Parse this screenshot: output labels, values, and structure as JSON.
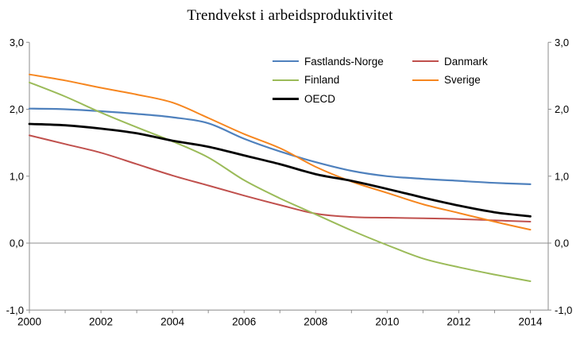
{
  "title": "Trendvekst i arbeidsproduktivitet",
  "chart_data": {
    "type": "line",
    "title": "Trendvekst i arbeidsproduktivitet",
    "x": [
      2000,
      2001,
      2002,
      2003,
      2004,
      2005,
      2006,
      2007,
      2008,
      2009,
      2010,
      2011,
      2012,
      2013,
      2014
    ],
    "x_major_ticks": [
      2000,
      2002,
      2004,
      2006,
      2008,
      2010,
      2012,
      2014
    ],
    "x_major_tick_labels": [
      "2000",
      "2002",
      "2004",
      "2006",
      "2008",
      "2010",
      "2012",
      "2014"
    ],
    "y_ticks": [
      3,
      2,
      1,
      0,
      -1
    ],
    "y_tick_labels": [
      "3,0",
      "2,0",
      "1,0",
      "0,0",
      "-1,0"
    ],
    "ylim": [
      -1.0,
      3.0
    ],
    "xlim": [
      2000,
      2014.5
    ],
    "grid": "horizontal zero line only",
    "axis_color": "#8c8c8c",
    "legend_position": "top-center, two columns, no border",
    "legend_columns": [
      [
        "Fastlands-Norge",
        "Finland",
        "OECD"
      ],
      [
        "Danmark",
        "Sverige"
      ]
    ],
    "series": [
      {
        "name": "Fastlands-Norge",
        "color": "#4F81BD",
        "stroke_width": 2.2,
        "values": [
          2.01,
          2.0,
          1.97,
          1.93,
          1.88,
          1.79,
          1.56,
          1.37,
          1.21,
          1.08,
          1.0,
          0.96,
          0.93,
          0.9,
          0.88
        ]
      },
      {
        "name": "Danmark",
        "color": "#C0504D",
        "stroke_width": 2,
        "values": [
          1.61,
          1.48,
          1.35,
          1.18,
          1.01,
          0.86,
          0.71,
          0.57,
          0.44,
          0.39,
          0.38,
          0.37,
          0.36,
          0.34,
          0.32
        ]
      },
      {
        "name": "Finland",
        "color": "#9BBB59",
        "stroke_width": 2,
        "values": [
          2.4,
          2.19,
          1.95,
          1.73,
          1.52,
          1.28,
          0.94,
          0.67,
          0.43,
          0.19,
          -0.03,
          -0.23,
          -0.36,
          -0.47,
          -0.57
        ]
      },
      {
        "name": "Sverige",
        "color": "#F6861F",
        "stroke_width": 2,
        "values": [
          2.52,
          2.43,
          2.32,
          2.22,
          2.1,
          1.87,
          1.63,
          1.42,
          1.14,
          0.92,
          0.75,
          0.58,
          0.45,
          0.32,
          0.2
        ]
      },
      {
        "name": "OECD",
        "color": "#000000",
        "stroke_width": 2.8,
        "values": [
          1.78,
          1.76,
          1.71,
          1.64,
          1.53,
          1.44,
          1.31,
          1.18,
          1.03,
          0.93,
          0.81,
          0.68,
          0.56,
          0.46,
          0.4
        ]
      }
    ]
  }
}
